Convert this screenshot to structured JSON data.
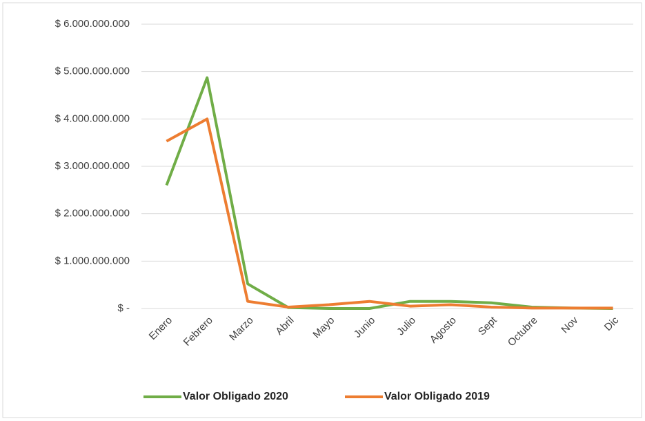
{
  "chart_data": {
    "type": "line",
    "categories": [
      "Enero",
      "Febrero",
      "Marzo",
      "Abril",
      "Mayo",
      "Junio",
      "Julio",
      "Agosto",
      "Sept",
      "Octubre",
      "Nov",
      "Dic"
    ],
    "series": [
      {
        "name": "Valor Obligado 2020",
        "color": "#70ad47",
        "values": [
          2600000000,
          4870000000,
          520000000,
          20000000,
          0,
          0,
          150000000,
          150000000,
          120000000,
          30000000,
          10000000,
          0
        ]
      },
      {
        "name": "Valor Obligado 2019",
        "color": "#ed7d31",
        "values": [
          3530000000,
          4000000000,
          150000000,
          30000000,
          80000000,
          150000000,
          50000000,
          80000000,
          30000000,
          10000000,
          10000000,
          10000000
        ]
      }
    ],
    "ylim": [
      0,
      6000000000
    ],
    "yticks": [
      {
        "value": 0,
        "label": "$ -"
      },
      {
        "value": 1000000000,
        "label": "$ 1.000.000.000"
      },
      {
        "value": 2000000000,
        "label": "$ 2.000.000.000"
      },
      {
        "value": 3000000000,
        "label": "$ 3.000.000.000"
      },
      {
        "value": 4000000000,
        "label": "$ 4.000.000.000"
      },
      {
        "value": 5000000000,
        "label": "$ 5.000.000.000"
      },
      {
        "value": 6000000000,
        "label": "$ 6.000.000.000"
      }
    ],
    "grid": true,
    "legend": "bottom"
  }
}
